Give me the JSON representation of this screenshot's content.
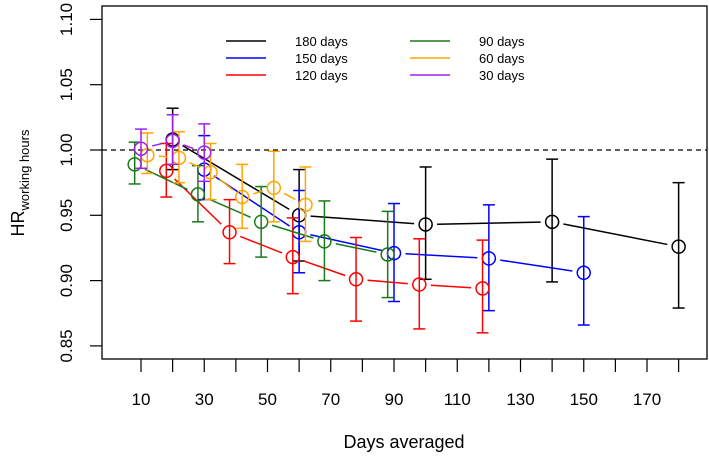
{
  "chart_data": {
    "type": "scatter",
    "title": "",
    "xlabel": "Days averaged",
    "ylabel_main": "HR",
    "ylabel_sub": "working hours",
    "xlim": [
      -2,
      186
    ],
    "ylim": [
      0.84,
      1.11
    ],
    "x_ticks": [
      10,
      20,
      30,
      40,
      50,
      60,
      70,
      80,
      90,
      100,
      110,
      120,
      130,
      140,
      150,
      160,
      170,
      180
    ],
    "x_tick_labels": [
      "10",
      "30",
      "50",
      "70",
      "90",
      "110",
      "130",
      "150",
      "170"
    ],
    "x_tick_label_values": [
      10,
      30,
      50,
      70,
      90,
      110,
      130,
      150,
      170
    ],
    "y_ticks": [
      0.85,
      0.9,
      0.95,
      1.0,
      1.05,
      1.1
    ],
    "y_tick_labels": [
      "0.85",
      "0.90",
      "0.95",
      "1.00",
      "1.05",
      "1.10"
    ],
    "reference_line": 1.0,
    "legend_position": "top-center",
    "series": [
      {
        "name": "180 days",
        "color": "#000000",
        "x": [
          20,
          60,
          100,
          140,
          180
        ],
        "y": [
          1.008,
          0.95,
          0.943,
          0.945,
          0.926
        ],
        "lower": [
          0.985,
          0.915,
          0.901,
          0.899,
          0.879
        ],
        "upper": [
          1.032,
          0.985,
          0.987,
          0.993,
          0.975
        ]
      },
      {
        "name": "150 days",
        "color": "#0000ff",
        "x": [
          30,
          60,
          90,
          120,
          150
        ],
        "y": [
          0.985,
          0.937,
          0.921,
          0.917,
          0.906
        ],
        "lower": [
          0.962,
          0.906,
          0.884,
          0.877,
          0.866
        ],
        "upper": [
          1.011,
          0.969,
          0.959,
          0.958,
          0.949
        ]
      },
      {
        "name": "120 days",
        "color": "#ff0000",
        "x": [
          18,
          38,
          58,
          78,
          98,
          118
        ],
        "y": [
          0.984,
          0.937,
          0.918,
          0.901,
          0.897,
          0.894
        ],
        "lower": [
          0.964,
          0.913,
          0.89,
          0.869,
          0.863,
          0.86
        ],
        "upper": [
          1.005,
          0.962,
          0.948,
          0.933,
          0.932,
          0.931
        ]
      },
      {
        "name": "90 days",
        "color": "#1a7a1a",
        "x": [
          8,
          28,
          48,
          68,
          88
        ],
        "y": [
          0.989,
          0.966,
          0.945,
          0.93,
          0.92
        ],
        "lower": [
          0.974,
          0.945,
          0.918,
          0.9,
          0.887
        ],
        "upper": [
          1.006,
          0.988,
          0.972,
          0.961,
          0.953
        ]
      },
      {
        "name": "60 days",
        "color": "#ffa500",
        "x": [
          12,
          22,
          32,
          42,
          52,
          62
        ],
        "y": [
          0.996,
          0.994,
          0.983,
          0.964,
          0.971,
          0.958
        ],
        "lower": [
          0.982,
          0.975,
          0.962,
          0.94,
          0.945,
          0.93
        ],
        "upper": [
          1.013,
          1.014,
          1.005,
          0.989,
          0.999,
          0.987
        ]
      },
      {
        "name": "30 days",
        "color": "#a020f0",
        "x": [
          10,
          20,
          30
        ],
        "y": [
          1.001,
          1.007,
          0.998
        ],
        "lower": [
          0.986,
          0.989,
          0.976
        ],
        "upper": [
          1.016,
          1.027,
          1.02
        ]
      }
    ]
  }
}
